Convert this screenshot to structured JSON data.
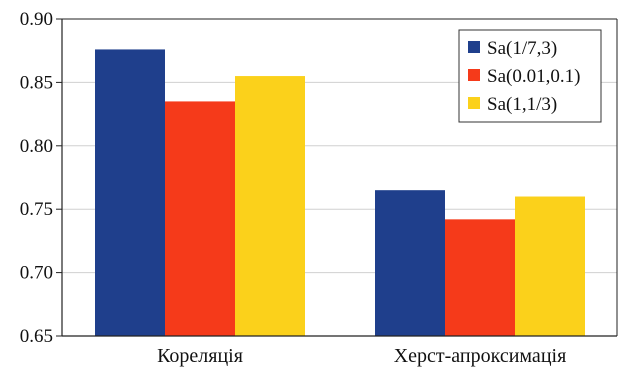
{
  "chart_data": {
    "type": "bar",
    "title": "",
    "xlabel": "",
    "ylabel": "",
    "categories": [
      "Кореляція",
      "Херст-апроксимація"
    ],
    "series": [
      {
        "name": "Sa(1/7,3)",
        "color": "#1f3f8c",
        "values": [
          0.876,
          0.765
        ]
      },
      {
        "name": "Sa(0.01,0.1)",
        "color": "#f53a1a",
        "values": [
          0.835,
          0.742
        ]
      },
      {
        "name": "Sa(1,1/3)",
        "color": "#fbd11b",
        "values": [
          0.855,
          0.76
        ]
      }
    ],
    "ylim": [
      0.65,
      0.9
    ],
    "yticks": [
      "0.65",
      "0.70",
      "0.75",
      "0.80",
      "0.85",
      "0.90"
    ],
    "grid": true,
    "legend_position": "top-right"
  }
}
